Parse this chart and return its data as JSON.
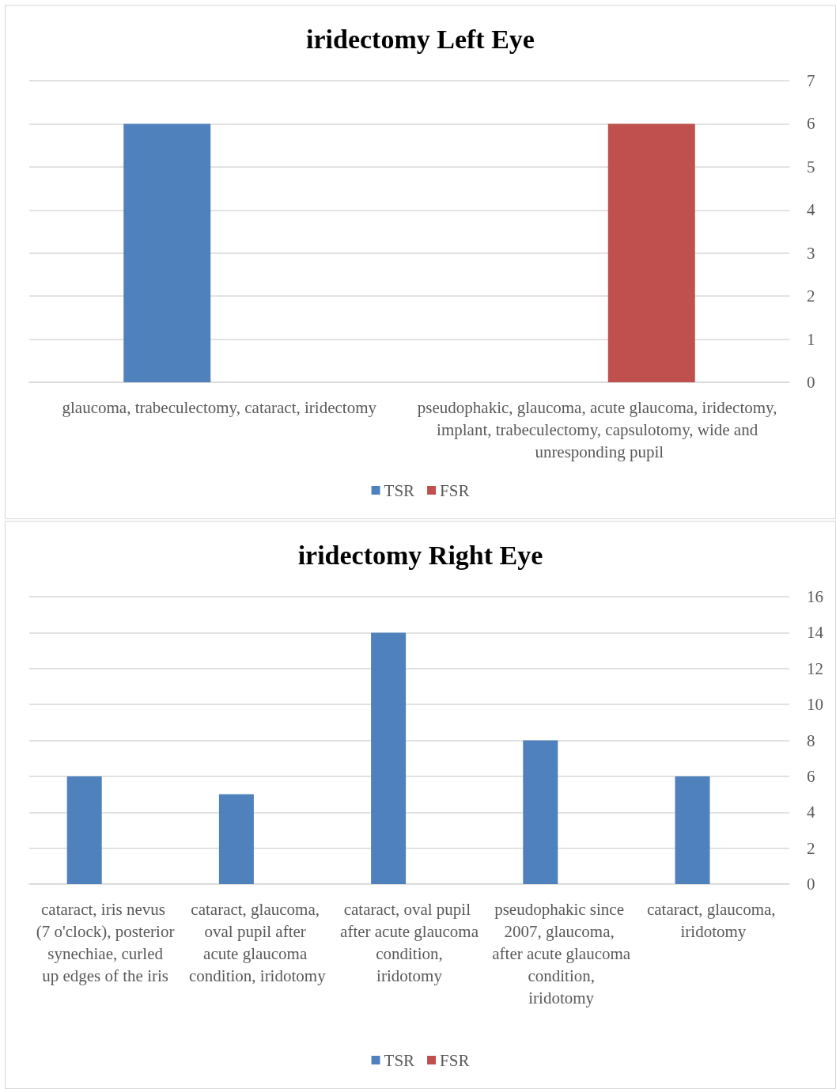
{
  "chart_data": [
    {
      "type": "bar",
      "title": "iridectomy Left Eye",
      "categories": [
        "glaucoma, trabeculectomy, cataract, iridectomy",
        "pseudophakic, glaucoma, acute glaucoma, iridectomy, implant, trabeculectomy, capsulotomy, wide and unresponding pupil"
      ],
      "series": [
        {
          "name": "TSR",
          "color": "#4f81bd",
          "values": [
            6,
            null
          ]
        },
        {
          "name": "FSR",
          "color": "#c0504d",
          "values": [
            null,
            6
          ]
        }
      ],
      "ylim": [
        0,
        7
      ],
      "yticks": [
        0,
        1,
        2,
        3,
        4,
        5,
        6,
        7
      ],
      "grid": "y",
      "legend": "bottom"
    },
    {
      "type": "bar",
      "title": "iridectomy Right Eye",
      "categories": [
        "cataract, iris nevus (7 o'clock), posterior synechiae, curled up edges of the iris",
        "cataract, glaucoma, oval pupil after acute glaucoma condition, iridotomy",
        "cataract, oval pupil after acute glaucoma condition, iridotomy",
        "pseudophakic since 2007, glaucoma, after acute glaucoma condition, iridotomy",
        "cataract, glaucoma, iridotomy"
      ],
      "series": [
        {
          "name": "TSR",
          "color": "#4f81bd",
          "values": [
            6,
            5,
            14,
            8,
            6
          ]
        },
        {
          "name": "FSR",
          "color": "#c0504d",
          "values": [
            null,
            null,
            null,
            null,
            null
          ]
        }
      ],
      "ylim": [
        0,
        16
      ],
      "yticks": [
        0,
        2,
        4,
        6,
        8,
        10,
        12,
        14,
        16
      ],
      "grid": "y",
      "legend": "bottom"
    }
  ]
}
